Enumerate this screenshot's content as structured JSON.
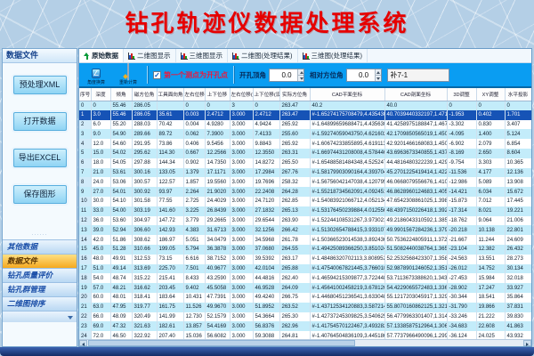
{
  "title": "钻孔轨迹仪数据处理系统",
  "colors": {
    "title_red": "#e60000",
    "toolbar_blue": "#0a9df2",
    "row_alt_cyan": "#c3ecfa",
    "row_selected_navy": "#1653b6",
    "nav_selected_orange": "#f5a91f",
    "checkbox_label_red": "#e81a40"
  },
  "sidebar": {
    "header": "数据文件",
    "buttons": [
      "预处理XML",
      "打开数据",
      "导出EXCEL",
      "保存图形"
    ],
    "nav_items": [
      {
        "label": "其他数据",
        "selected": false
      },
      {
        "label": "数据文件",
        "selected": true
      },
      {
        "label": "钻孔质量评价",
        "selected": false
      },
      {
        "label": "钻孔群管理",
        "selected": false
      },
      {
        "label": "二维图排序",
        "selected": false
      }
    ]
  },
  "tabs": [
    {
      "label": "原始数据",
      "icon": "up-arrow-icon",
      "active": true
    },
    {
      "label": "二维图显示",
      "icon": "chart-icon",
      "active": false
    },
    {
      "label": "三维图显示",
      "icon": "chart-icon",
      "active": false
    },
    {
      "label": "二维图(处理结果)",
      "icon": "chart-icon",
      "active": false
    },
    {
      "label": "三维图(处理结果)",
      "icon": "chart-icon",
      "active": false
    }
  ],
  "toolbar": {
    "icon_buttons": [
      {
        "label": "角度换算",
        "icon": "angle-tool-icon"
      },
      {
        "label": "重新计算",
        "icon": "recalculate-icon"
      }
    ],
    "checkbox": {
      "label": "第一个测点为开孔点",
      "checked": true,
      "check_glyph": "✓"
    },
    "fields": [
      {
        "label": "开孔顶角",
        "value": "0.0"
      },
      {
        "label": "相对方位角",
        "value": "0.0"
      }
    ],
    "hole_input": {
      "value": "补7-1"
    }
  },
  "table": {
    "columns": [
      "序号",
      "深度",
      "倾角",
      "磁方位角",
      "工具面向角",
      "左右位移",
      "上下位移",
      "左右位移(设计)",
      "上下位移(设计)",
      "实际方位角",
      "CAD平面坐标",
      "CAD剖面坐标",
      "3D调整",
      "XY调整",
      "水平投影"
    ],
    "selected_row": 1,
    "rows": [
      [
        "0",
        "0",
        "55.46",
        "286.05",
        "",
        "0",
        "0",
        "3",
        "0",
        "263.47",
        "40.2",
        "40.0",
        "0",
        "0",
        "0"
      ],
      [
        "1",
        "3.0",
        "55.46",
        "286.05",
        "35.61",
        "0.003",
        "2.4712",
        "3.000",
        "2.4712",
        "263.47",
        "#-1.65274175708479,4.4354303…",
        "40.7039440332197,1.4712000…",
        "-1.953",
        "0.402",
        "1.701"
      ],
      [
        "2",
        "6.0",
        "55.20",
        "288.03",
        "70.42",
        "0.004",
        "4.9280",
        "3.000",
        "4.9424",
        "265.92",
        "#-1.64899659688471,4.4356303…",
        "41.4258975188847,1.4670000…",
        "-3.302",
        "0.830",
        "3.407"
      ],
      [
        "3",
        "9.0",
        "54.90",
        "289.66",
        "89.72",
        "0.062",
        "7.3900",
        "3.000",
        "7.4133",
        "255.60",
        "#-1.59274059043750,4.6216022…",
        "42.1709850565019,1.4508000…",
        "-4.095",
        "1.400",
        "5.124"
      ],
      [
        "4",
        "12.0",
        "54.60",
        "291.95",
        "73.86",
        "0.406",
        "9.5456",
        "3.000",
        "9.8843",
        "265.92",
        "#-1.60674233855895,4.6191130…",
        "42.9201466168083,1.4500000…",
        "-6.902",
        "2.079",
        "6.854"
      ],
      [
        "5",
        "15.0",
        "54.02",
        "295.62",
        "114.30",
        "0.667",
        "12.2566",
        "3.000",
        "12.3550",
        "263.31",
        "#-1.66974431208008,4.5784460…",
        "43.6963673340855,1.4378000…",
        "-8.169",
        "2.650",
        "8.604"
      ],
      [
        "6",
        "18.0",
        "54.05",
        "297.88",
        "144.34",
        "0.902",
        "14.7350",
        "3.000",
        "14.8272",
        "265.50",
        "#-1.65488581484348,4.5252478…",
        "44.4816480322239,1.4294500…",
        "-9.754",
        "3.303",
        "10.365"
      ],
      [
        "7",
        "21.0",
        "53.61",
        "300.16",
        "133.05",
        "1.379",
        "17.1171",
        "3.000",
        "17.2984",
        "267.76",
        "#-1.58179903090164,4.3937042…",
        "45.2701225419414,1.4221000…",
        "-11.536",
        "4.177",
        "12.136"
      ],
      [
        "8",
        "24.0",
        "53.06",
        "300.57",
        "122.57",
        "1.857",
        "19.5560",
        "3.000",
        "19.7696",
        "258.32",
        "#-1.56756042147038,4.1207957…",
        "46.0668079556676,1.4100000…",
        "-12.986",
        "5.089",
        "13.908"
      ],
      [
        "9",
        "27.0",
        "54.01",
        "300.92",
        "93.97",
        "2.264",
        "21.9020",
        "3.000",
        "22.2408",
        "264.28",
        "#-1.55218734562091,4.0924515…",
        "46.8628960124683,1.4052000…",
        "-14.421",
        "6.034",
        "15.672"
      ],
      [
        "10",
        "30.0",
        "54.10",
        "301.58",
        "77.55",
        "2.725",
        "24.4029",
        "3.000",
        "24.7120",
        "262.85",
        "#-1.54083921066712,4.0521340…",
        "47.6542308861025,1.3988000…",
        "-15.873",
        "7.012",
        "17.445"
      ],
      [
        "11",
        "33.0",
        "54.00",
        "303.19",
        "141.60",
        "3.225",
        "26.8439",
        "3.000",
        "27.1832",
        "265.13",
        "#-1.53176450239884,4.0125566…",
        "48.4397150226418,1.3920000…",
        "-17.314",
        "8.021",
        "19.221"
      ],
      [
        "12",
        "36.0",
        "53.60",
        "304.97",
        "147.72",
        "3.779",
        "29.2665",
        "3.000",
        "29.6544",
        "263.90",
        "#-1.52244108531267,3.9730214…",
        "49.2186043310592,1.3855000…",
        "-18.762",
        "9.064",
        "21.006"
      ],
      [
        "13",
        "39.0",
        "52.94",
        "306.60",
        "142.93",
        "4.383",
        "31.6713",
        "3.000",
        "32.1256",
        "266.42",
        "#-1.51302654788415,3.9331078…",
        "49.9901567284236,1.3791000…",
        "-20.218",
        "10.138",
        "22.801"
      ],
      [
        "14",
        "42.0",
        "51.86",
        "308.62",
        "186.97",
        "5.051",
        "34.0479",
        "3.000",
        "34.5968",
        "261.78",
        "#-1.50366523014538,3.8924360…",
        "50.7536224805911,1.3720000…",
        "-21.667",
        "11.244",
        "24.609"
      ],
      [
        "15",
        "45.0",
        "51.28",
        "310.66",
        "199.05",
        "5.794",
        "36.3878",
        "3.000",
        "37.0680",
        "264.55",
        "#-1.49425089366250,3.8510242…",
        "51.5082440038764,1.3652000…",
        "-23.104",
        "12.382",
        "26.432"
      ],
      [
        "16",
        "48.0",
        "49.91",
        "312.53",
        "73.15",
        "6.616",
        "38.7152",
        "3.000",
        "39.5392",
        "263.17",
        "#-1.48486320702113,3.8089520…",
        "52.2532568423307,1.3580000…",
        "-24.563",
        "13.551",
        "28.273"
      ],
      [
        "17",
        "51.0",
        "49.14",
        "313.69",
        "225.70",
        "7.501",
        "40.9677",
        "3.000",
        "42.0104",
        "265.88",
        "#-1.47540067821445,3.7660108…",
        "52.9878901246052,1.3510000…",
        "-26.012",
        "14.752",
        "30.134"
      ],
      [
        "18",
        "54.0",
        "48.74",
        "315.22",
        "215.41",
        "8.433",
        "43.2590",
        "3.000",
        "44.4816",
        "262.40",
        "#-1.46594215309877,3.7224480…",
        "53.7113673388620,1.3438000…",
        "-27.453",
        "15.984",
        "32.018"
      ],
      [
        "19",
        "57.0",
        "48.21",
        "316.62",
        "203.45",
        "9.402",
        "45.5058",
        "3.000",
        "46.9528",
        "264.09",
        "#-1.45641002458219,3.6781266…",
        "54.4229065572483,1.3362000…",
        "-28.902",
        "17.247",
        "33.927"
      ],
      [
        "20",
        "60.0",
        "48.01",
        "318.41",
        "183.64",
        "10.431",
        "47.7391",
        "3.000",
        "49.4240",
        "266.75",
        "#-1.44680451236541,3.6330482…",
        "55.1217203045917,1.3290000…",
        "-30.344",
        "18.541",
        "35.864"
      ],
      [
        "21",
        "63.0",
        "47.95",
        "319.77",
        "161.75",
        "11.526",
        "49.9670",
        "3.000",
        "51.8952",
        "263.52",
        "#-1.43712534120883,3.5872140…",
        "55.8070160862125,1.3214000…",
        "-31.790",
        "19.866",
        "37.831"
      ],
      [
        "22",
        "66.0",
        "48.09",
        "320.49",
        "141.99",
        "12.730",
        "52.1579",
        "3.000",
        "54.3664",
        "265.30",
        "#-1.42737245309825,3.5406250…",
        "56.4779963301407,1.3140000…",
        "-33.246",
        "21.222",
        "39.830"
      ],
      [
        "23",
        "69.0",
        "47.32",
        "321.63",
        "182.61",
        "13.857",
        "54.4169",
        "3.000",
        "56.8376",
        "262.96",
        "#-1.41754570122467,3.4932820…",
        "57.1338587512964,1.3064000…",
        "-34.683",
        "22.608",
        "41.863"
      ],
      [
        "24",
        "72.0",
        "46.50",
        "322.92",
        "207.40",
        "15.036",
        "56.6082",
        "3.000",
        "59.3088",
        "264.81",
        "#-1.40764504836109,3.4451862…",
        "57.7737966490096,1.2990000…",
        "-36.124",
        "24.025",
        "43.932"
      ]
    ]
  }
}
